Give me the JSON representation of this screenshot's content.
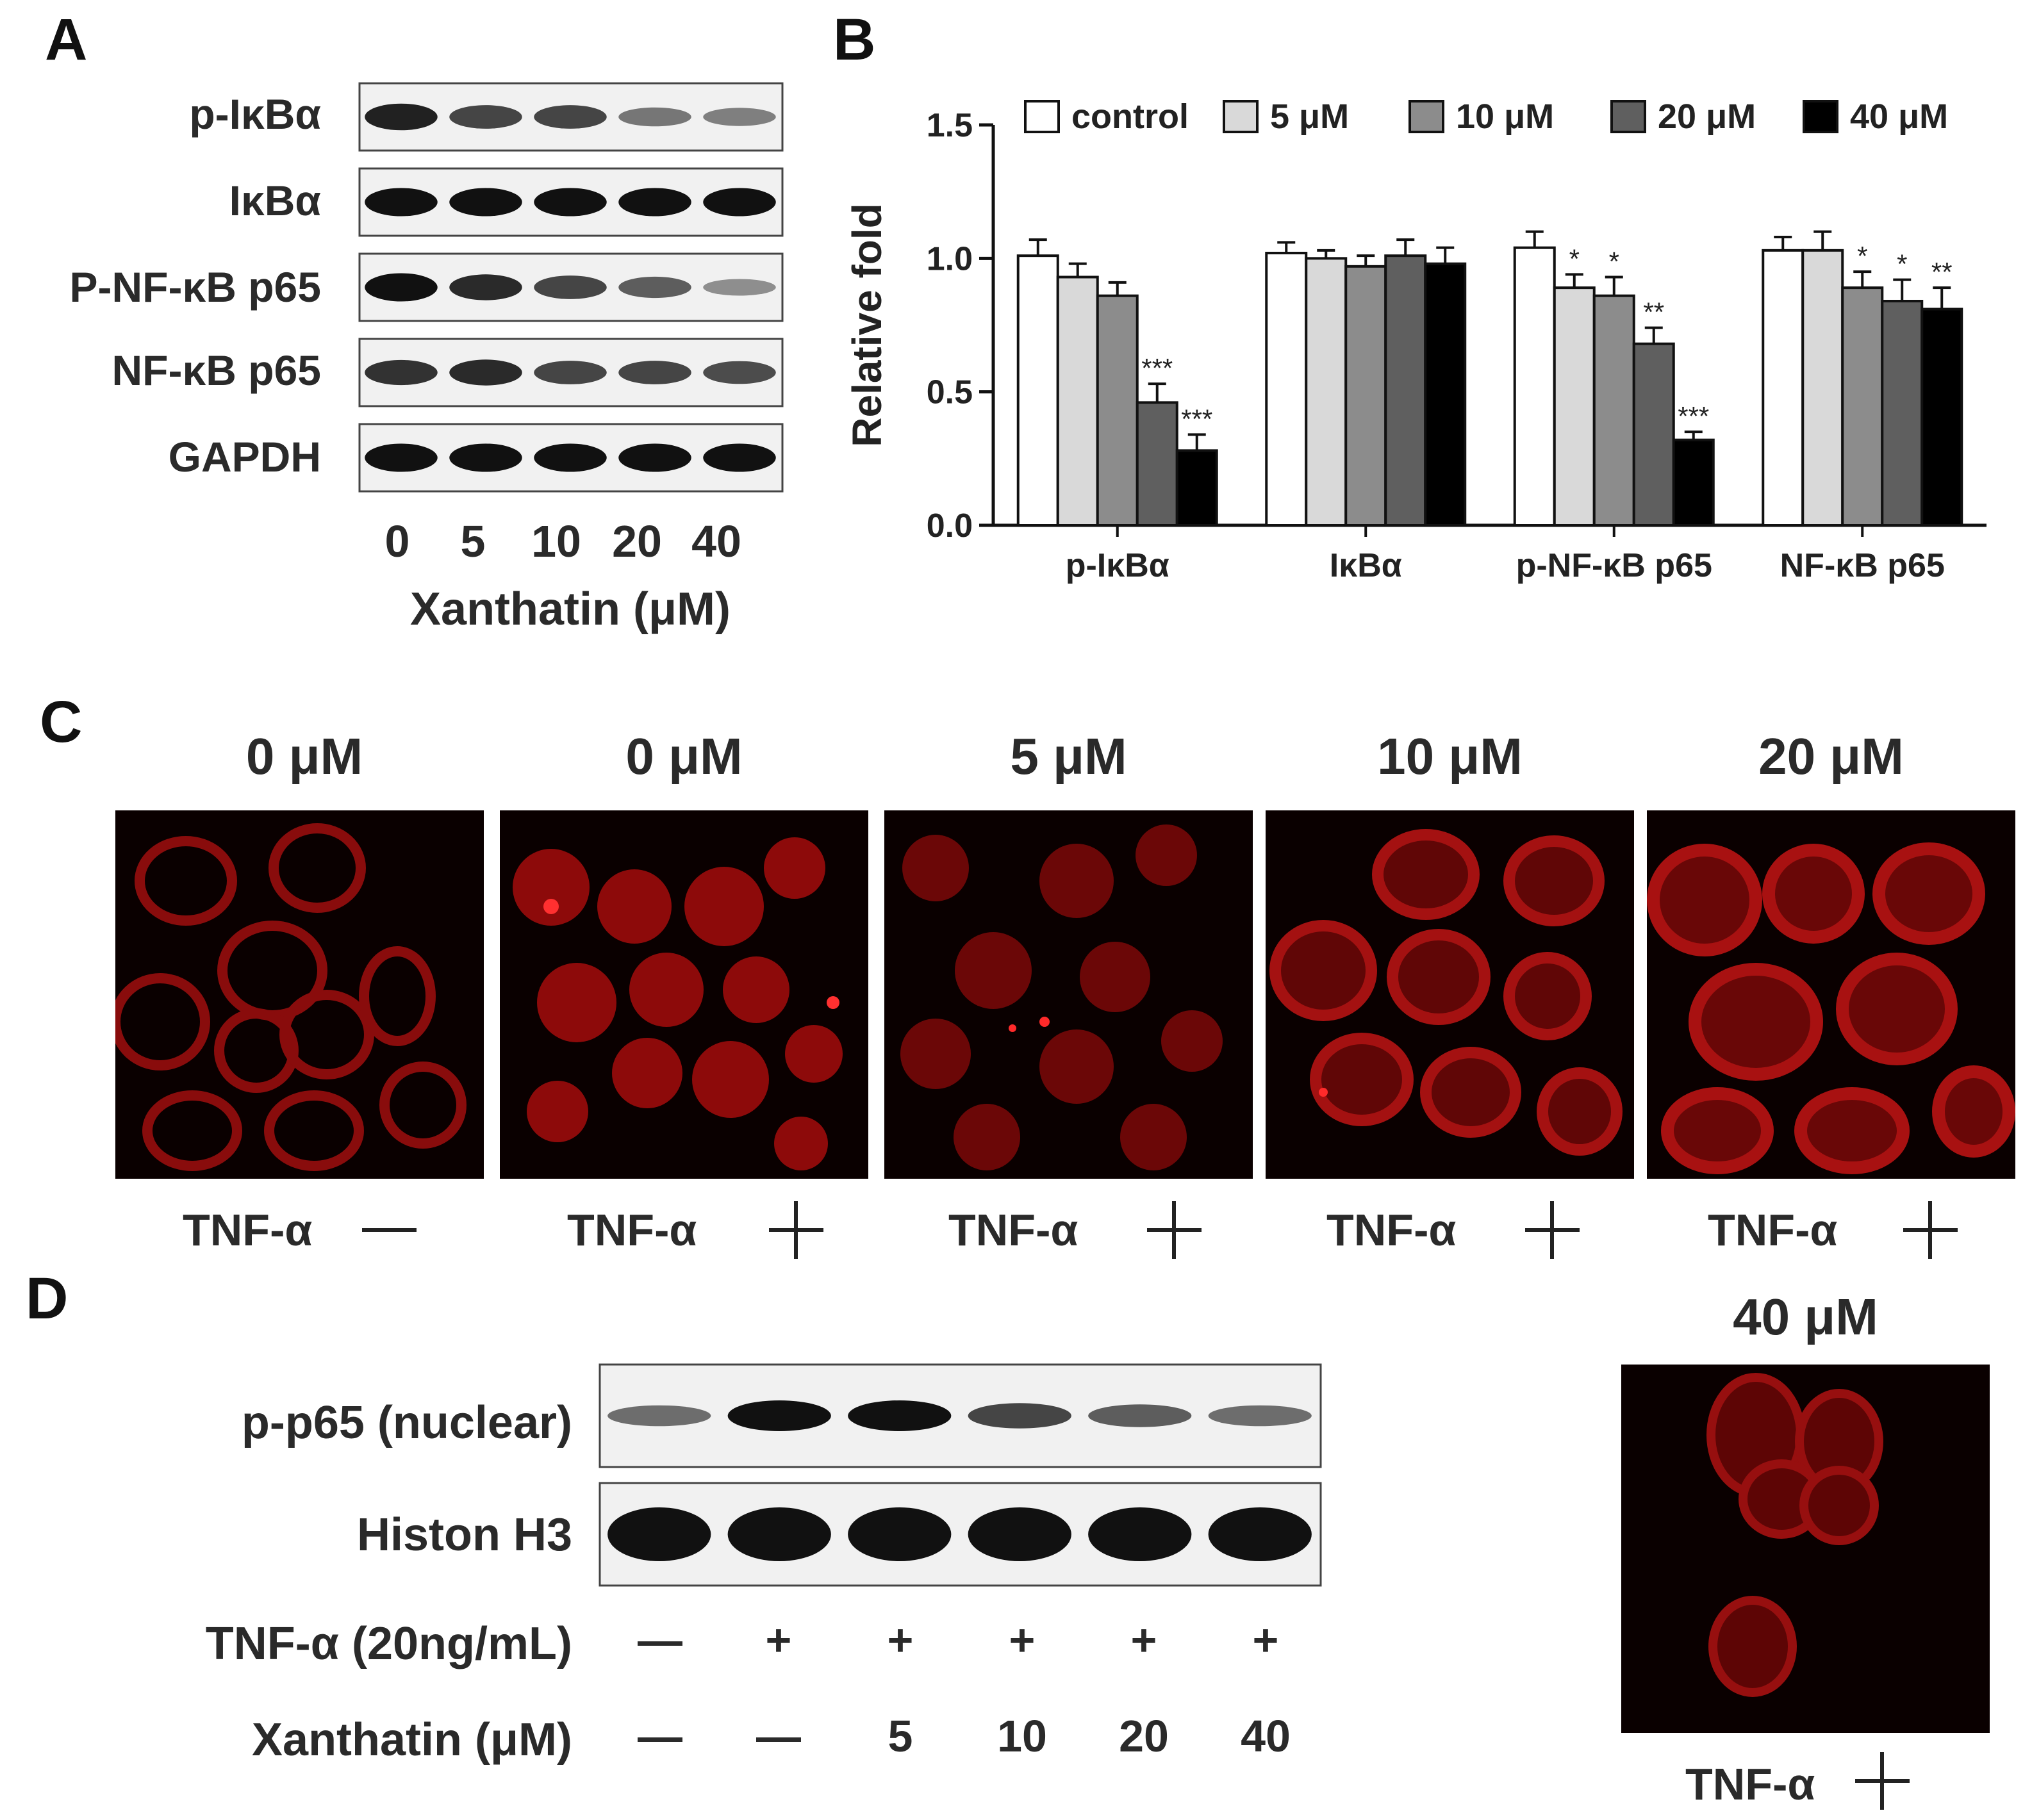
{
  "panels": {
    "a": "A",
    "b": "B",
    "c": "C",
    "d": "D"
  },
  "panel_a": {
    "rows": [
      "p-IκBα",
      "IκBα",
      "P-NF-κB p65",
      "NF-κB p65",
      "GAPDH"
    ],
    "lanes": [
      "0",
      "5",
      "10",
      "20",
      "40"
    ],
    "xlabel": "Xanthatin (μM)",
    "band_intensity": [
      [
        0.9,
        0.7,
        0.7,
        0.4,
        0.35
      ],
      [
        1.0,
        1.0,
        1.0,
        1.0,
        1.0
      ],
      [
        1.0,
        0.85,
        0.7,
        0.55,
        0.25
      ],
      [
        0.8,
        0.85,
        0.7,
        0.7,
        0.65
      ],
      [
        1.0,
        1.0,
        1.0,
        1.0,
        1.0
      ]
    ]
  },
  "chart_data": {
    "type": "bar",
    "categories": [
      "p-IκBα",
      "IκBα",
      "p-NF-κB p65",
      "NF-κB p65"
    ],
    "ylabel": "Relative fold",
    "ylim": [
      0,
      1.5
    ],
    "yticks": [
      "0.0",
      "0.5",
      "1.0",
      "1.5"
    ],
    "legend_position": "top",
    "series": [
      {
        "name": "control",
        "color": "#ffffff",
        "values": [
          1.01,
          1.02,
          1.04,
          1.03
        ],
        "errors": [
          0.06,
          0.04,
          0.06,
          0.05
        ],
        "sig": [
          "",
          "",
          "",
          ""
        ]
      },
      {
        "name": "5 μM",
        "color": "#d9d9d9",
        "values": [
          0.93,
          1.0,
          0.89,
          1.03
        ],
        "errors": [
          0.05,
          0.03,
          0.05,
          0.07
        ],
        "sig": [
          "",
          "",
          "*",
          ""
        ]
      },
      {
        "name": "10 μM",
        "color": "#8c8c8c",
        "values": [
          0.86,
          0.97,
          0.86,
          0.89
        ],
        "errors": [
          0.05,
          0.04,
          0.07,
          0.06
        ],
        "sig": [
          "",
          "",
          "*",
          "*"
        ]
      },
      {
        "name": "20 μM",
        "color": "#5f5f5f",
        "values": [
          0.46,
          1.01,
          0.68,
          0.84
        ],
        "errors": [
          0.07,
          0.06,
          0.06,
          0.08
        ],
        "sig": [
          "***",
          "",
          "**",
          "*"
        ]
      },
      {
        "name": "40 μM",
        "color": "#000000",
        "values": [
          0.28,
          0.98,
          0.32,
          0.81
        ],
        "errors": [
          0.06,
          0.06,
          0.03,
          0.08
        ],
        "sig": [
          "***",
          "",
          "***",
          "**"
        ]
      }
    ]
  },
  "panel_c": {
    "images": [
      {
        "conc": "0 μM",
        "tnf": "TNF-α",
        "sign": "minus"
      },
      {
        "conc": "0 μM",
        "tnf": "TNF-α",
        "sign": "plus"
      },
      {
        "conc": "5 μM",
        "tnf": "TNF-α",
        "sign": "plus"
      },
      {
        "conc": "10 μM",
        "tnf": "TNF-α",
        "sign": "plus"
      },
      {
        "conc": "20 μM",
        "tnf": "TNF-α",
        "sign": "plus"
      },
      {
        "conc": "40 μM",
        "tnf": "TNF-α",
        "sign": "plus"
      }
    ]
  },
  "panel_d": {
    "rows": [
      "p-p65 (nuclear)",
      "Histon H3"
    ],
    "tnf_label": "TNF-α (20ng/mL)",
    "tnf_values": [
      "—",
      "+",
      "+",
      "+",
      "+",
      "+"
    ],
    "xanthatin_label": "Xanthatin (μM)",
    "xanthatin_values": [
      "—",
      "—",
      "5",
      "10",
      "20",
      "40"
    ],
    "band_intensity": [
      [
        0.45,
        1.0,
        1.0,
        0.7,
        0.55,
        0.45
      ],
      [
        1.0,
        1.0,
        1.0,
        1.0,
        1.0,
        1.0
      ]
    ]
  }
}
